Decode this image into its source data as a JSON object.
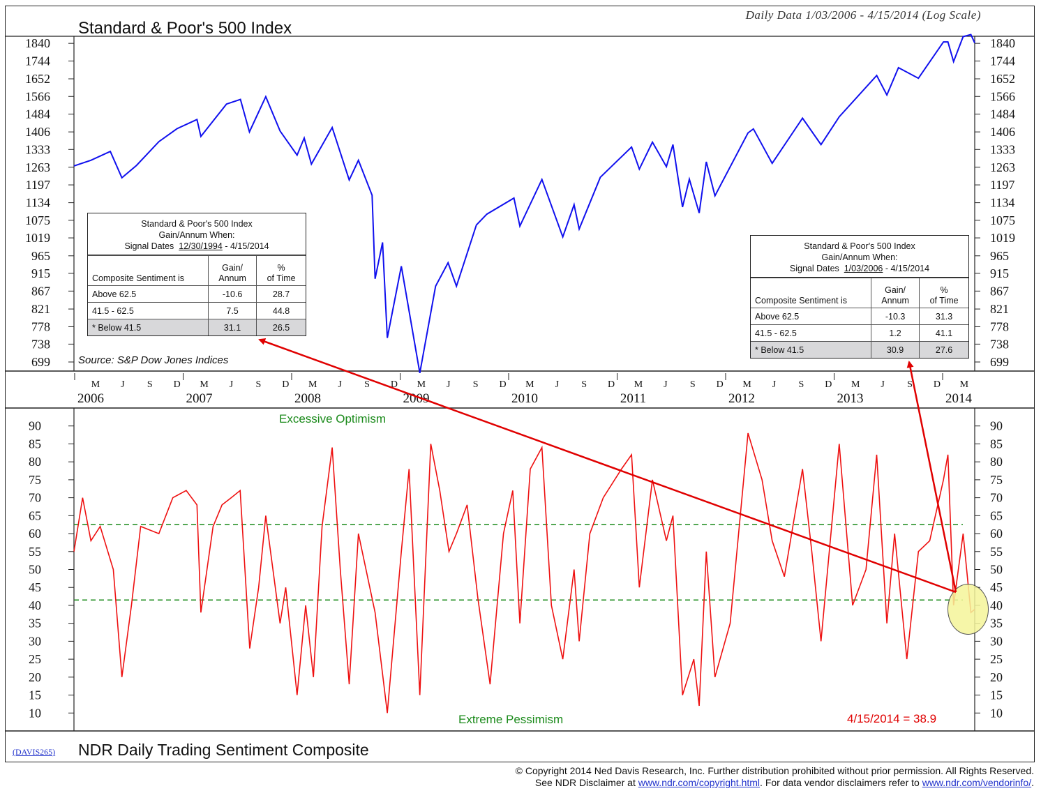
{
  "header": {
    "title": "Standard & Poor's 500 Index",
    "subtitle": "Daily Data 1/03/2006 - 4/15/2014 (Log Scale)",
    "source": "Source: S&P Dow Jones Indices"
  },
  "sentiment": {
    "title": "NDR Daily Trading Sentiment Composite",
    "chart_id": "(DAVIS265)",
    "optimism_label": "Excessive Optimism",
    "pessimism_label": "Extreme Pessimism",
    "last_value": "4/15/2014 = 38.9"
  },
  "footer": {
    "line1": "© Copyright 2014 Ned Davis Research, Inc.  Further distribution prohibited without prior permission.  All Rights Reserved.",
    "line2_pre": "See NDR Disclaimer at ",
    "link1": "www.ndr.com/copyright.html",
    "line2_mid": ".  For data vendor disclaimers refer to ",
    "link2": "www.ndr.com/vendorinfo/",
    "line2_post": "."
  },
  "table_left": {
    "line1": "Standard & Poor's 500 Index",
    "line2": "Gain/Annum When:",
    "dates_label": "Signal Dates",
    "dates_start": "12/30/1994",
    "dates_end": "- 4/15/2014",
    "col1": "Composite Sentiment is",
    "col2a": "Gain/",
    "col2b": "Annum",
    "col3a": "%",
    "col3b": "of Time",
    "rows": [
      {
        "label": "Above 62.5",
        "gain": "-10.6",
        "time": "28.7"
      },
      {
        "label": "41.5 - 62.5",
        "gain": "7.5",
        "time": "44.8"
      },
      {
        "label": "* Below 41.5",
        "gain": "31.1",
        "time": "26.5"
      }
    ]
  },
  "table_right": {
    "line1": "Standard & Poor's 500 Index",
    "line2": "Gain/Annum When:",
    "dates_label": "Signal Dates",
    "dates_start": "1/03/2006",
    "dates_end": "- 4/15/2014",
    "col1": "Composite Sentiment is",
    "col2a": "Gain/",
    "col2b": "Annum",
    "col3a": "%",
    "col3b": "of Time",
    "rows": [
      {
        "label": "Above 62.5",
        "gain": "-10.3",
        "time": "31.3"
      },
      {
        "label": "41.5 - 62.5",
        "gain": "1.2",
        "time": "41.1"
      },
      {
        "label": "* Below 41.5",
        "gain": "30.9",
        "time": "27.6"
      }
    ]
  },
  "colors": {
    "price_line": "#1010ee",
    "sentiment_line": "#ee1010",
    "threshold_line": "#1a8a1a",
    "arrow": "#e00000",
    "highlight": "#f5f59a"
  },
  "chart_data": [
    {
      "type": "line",
      "title": "Standard & Poor's 500 Index",
      "yscale": "log",
      "ylim": [
        680,
        1880
      ],
      "yticks": [
        1840,
        1744,
        1652,
        1566,
        1484,
        1406,
        1333,
        1263,
        1197,
        1134,
        1075,
        1019,
        965,
        915,
        867,
        821,
        778,
        738,
        699
      ],
      "xlim": [
        "2006-01-03",
        "2014-04-15"
      ],
      "month_ticks": [
        "M",
        "J",
        "S",
        "D",
        "M",
        "J",
        "S",
        "D",
        "M",
        "J",
        "S",
        "D",
        "M",
        "J",
        "S",
        "D",
        "M",
        "J",
        "S",
        "D",
        "M",
        "J",
        "S",
        "D",
        "M",
        "J",
        "S",
        "D",
        "M",
        "J",
        "S",
        "D",
        "M"
      ],
      "year_labels": [
        "2006",
        "2007",
        "2008",
        "2009",
        "2010",
        "2011",
        "2012",
        "2013",
        "2014"
      ],
      "series": [
        {
          "x": [
            "2006-01-03",
            "2006-03-01",
            "2006-05-05",
            "2006-06-13",
            "2006-08-01",
            "2006-10-15",
            "2006-12-15",
            "2007-02-20",
            "2007-03-05",
            "2007-05-30",
            "2007-07-16",
            "2007-08-15",
            "2007-10-09",
            "2007-11-26",
            "2008-01-22",
            "2008-02-15",
            "2008-03-10",
            "2008-05-19",
            "2008-07-15",
            "2008-08-15",
            "2008-09-30",
            "2008-10-10",
            "2008-11-04",
            "2008-11-20",
            "2009-01-06",
            "2009-03-09",
            "2009-05-01",
            "2009-06-12",
            "2009-07-10",
            "2009-09-15",
            "2009-10-20",
            "2010-01-19",
            "2010-02-08",
            "2010-04-23",
            "2010-07-02",
            "2010-08-09",
            "2010-08-26",
            "2010-11-05",
            "2011-02-18",
            "2011-03-16",
            "2011-04-29",
            "2011-06-15",
            "2011-07-07",
            "2011-08-08",
            "2011-08-31",
            "2011-10-03",
            "2011-10-27",
            "2011-11-25",
            "2012-03-15",
            "2012-04-02",
            "2012-06-04",
            "2012-09-14",
            "2012-11-15",
            "2013-01-15",
            "2013-05-21",
            "2013-06-24",
            "2013-08-02",
            "2013-10-08",
            "2013-12-31",
            "2014-01-15",
            "2014-02-03",
            "2014-03-07",
            "2014-04-02",
            "2014-04-15"
          ],
          "y": [
            1268,
            1290,
            1325,
            1223,
            1270,
            1365,
            1420,
            1460,
            1387,
            1530,
            1552,
            1406,
            1565,
            1410,
            1310,
            1380,
            1275,
            1425,
            1215,
            1290,
            1160,
            900,
            1005,
            752,
            935,
            676,
            880,
            945,
            880,
            1060,
            1095,
            1150,
            1056,
            1217,
            1022,
            1127,
            1047,
            1225,
            1343,
            1256,
            1363,
            1265,
            1353,
            1119,
            1218,
            1099,
            1284,
            1158,
            1402,
            1419,
            1278,
            1466,
            1353,
            1472,
            1669,
            1573,
            1709,
            1655,
            1848,
            1848,
            1741,
            1878,
            1890,
            1842
          ]
        }
      ]
    },
    {
      "type": "line",
      "title": "NDR Daily Trading Sentiment Composite",
      "ylim": [
        5,
        95
      ],
      "yticks": [
        90,
        85,
        80,
        75,
        70,
        65,
        60,
        55,
        50,
        45,
        40,
        35,
        30,
        25,
        20,
        15,
        10
      ],
      "xlim": [
        "2006-01-03",
        "2014-04-15"
      ],
      "thresholds": [
        62.5,
        41.5
      ],
      "annotations": [
        "Excessive Optimism",
        "Extreme Pessimism",
        "4/15/2014 = 38.9"
      ],
      "series": [
        {
          "x": [
            "2006-01-03",
            "2006-02-01",
            "2006-03-01",
            "2006-04-01",
            "2006-05-15",
            "2006-06-13",
            "2006-07-15",
            "2006-08-15",
            "2006-10-15",
            "2006-12-01",
            "2007-01-15",
            "2007-02-20",
            "2007-03-05",
            "2007-04-15",
            "2007-05-15",
            "2007-06-15",
            "2007-07-15",
            "2007-08-16",
            "2007-09-15",
            "2007-10-09",
            "2007-11-26",
            "2007-12-15",
            "2008-01-22",
            "2008-02-20",
            "2008-03-17",
            "2008-04-15",
            "2008-05-19",
            "2008-06-15",
            "2008-07-15",
            "2008-08-15",
            "2008-10-10",
            "2008-11-20",
            "2009-01-06",
            "2009-02-01",
            "2009-03-09",
            "2009-04-15",
            "2009-05-15",
            "2009-06-15",
            "2009-07-10",
            "2009-08-15",
            "2009-09-20",
            "2009-10-31",
            "2009-12-15",
            "2010-01-15",
            "2010-02-08",
            "2010-03-15",
            "2010-04-23",
            "2010-05-25",
            "2010-07-02",
            "2010-08-09",
            "2010-08-26",
            "2010-10-01",
            "2010-11-15",
            "2011-01-15",
            "2011-02-18",
            "2011-03-16",
            "2011-04-29",
            "2011-06-15",
            "2011-07-07",
            "2011-08-08",
            "2011-09-15",
            "2011-10-03",
            "2011-10-27",
            "2011-11-25",
            "2012-01-15",
            "2012-03-15",
            "2012-05-01",
            "2012-06-04",
            "2012-07-15",
            "2012-09-14",
            "2012-10-15",
            "2012-11-15",
            "2013-01-15",
            "2013-03-01",
            "2013-04-15",
            "2013-05-21",
            "2013-06-24",
            "2013-07-20",
            "2013-08-30",
            "2013-10-08",
            "2013-11-15",
            "2013-12-31",
            "2014-01-15",
            "2014-02-03",
            "2014-03-07",
            "2014-04-02",
            "2014-04-15"
          ],
          "y": [
            55,
            70,
            58,
            62,
            50,
            20,
            40,
            62,
            60,
            70,
            72,
            68,
            38,
            62,
            68,
            70,
            72,
            28,
            45,
            65,
            35,
            45,
            15,
            40,
            20,
            62,
            84,
            50,
            18,
            60,
            38,
            10,
            55,
            78,
            15,
            85,
            72,
            55,
            60,
            68,
            42,
            18,
            60,
            72,
            35,
            78,
            84,
            40,
            25,
            50,
            30,
            60,
            70,
            78,
            82,
            45,
            75,
            58,
            65,
            15,
            25,
            12,
            55,
            20,
            35,
            88,
            75,
            58,
            48,
            78,
            55,
            30,
            85,
            40,
            50,
            82,
            35,
            60,
            25,
            55,
            58,
            75,
            82,
            40,
            60,
            38,
            38.9
          ]
        }
      ]
    }
  ]
}
